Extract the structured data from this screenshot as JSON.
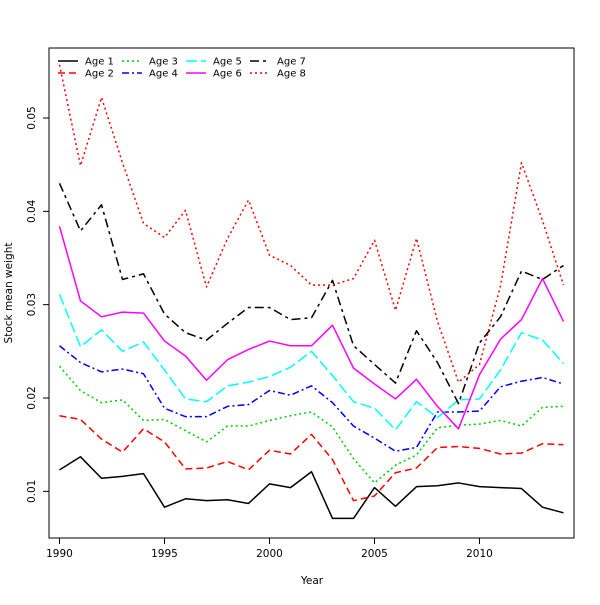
{
  "chart_data": {
    "type": "line",
    "title": "",
    "xlabel": "Year",
    "ylabel": "Stock mean weight",
    "xlim": [
      1989.5,
      2014.5
    ],
    "ylim": [
      0.005,
      0.0575
    ],
    "x_ticks": [
      1990,
      1995,
      2000,
      2005,
      2010
    ],
    "x_tick_labels": [
      "1990",
      "1995",
      "2000",
      "2005",
      "2010"
    ],
    "y_ticks": [
      0.01,
      0.02,
      0.03,
      0.04,
      0.05
    ],
    "y_tick_labels": [
      "0.01",
      "0.02",
      "0.03",
      "0.04",
      "0.05"
    ],
    "grid": false,
    "legend_position": "top-left",
    "x": [
      1990,
      1991,
      1992,
      1993,
      1994,
      1995,
      1996,
      1997,
      1998,
      1999,
      2000,
      2001,
      2002,
      2003,
      2004,
      2005,
      2006,
      2007,
      2008,
      2009,
      2010,
      2011,
      2012,
      2013,
      2014
    ],
    "series": [
      {
        "name": "Age 1",
        "color": "#000000",
        "dash": "solid",
        "values": [
          0.0123,
          0.0137,
          0.0114,
          0.0116,
          0.0119,
          0.0083,
          0.0092,
          0.009,
          0.0091,
          0.0087,
          0.0108,
          0.0104,
          0.0121,
          0.0071,
          0.0071,
          0.0104,
          0.0084,
          0.0105,
          0.0106,
          0.0109,
          0.0105,
          0.0104,
          0.0103,
          0.0083,
          0.0077
        ]
      },
      {
        "name": "Age 2",
        "color": "#ff0000",
        "dash": "dashed",
        "values": [
          0.0181,
          0.0177,
          0.0156,
          0.0142,
          0.0167,
          0.0153,
          0.0124,
          0.0125,
          0.0132,
          0.0123,
          0.0144,
          0.014,
          0.0161,
          0.0134,
          0.009,
          0.0095,
          0.012,
          0.0125,
          0.0147,
          0.0148,
          0.0146,
          0.014,
          0.0141,
          0.0151,
          0.015
        ]
      },
      {
        "name": "Age 3",
        "color": "#00cc00",
        "dash": "dotted",
        "values": [
          0.0234,
          0.0208,
          0.0195,
          0.0198,
          0.0176,
          0.0177,
          0.0165,
          0.0153,
          0.017,
          0.017,
          0.0176,
          0.0181,
          0.0185,
          0.0169,
          0.0135,
          0.0109,
          0.0128,
          0.0139,
          0.0168,
          0.0171,
          0.0172,
          0.0176,
          0.017,
          0.019,
          0.0191
        ]
      },
      {
        "name": "Age 4",
        "color": "#0000ff",
        "dash": "dashdot",
        "values": [
          0.0256,
          0.0238,
          0.0228,
          0.0231,
          0.0226,
          0.0189,
          0.018,
          0.018,
          0.0191,
          0.0193,
          0.0208,
          0.0203,
          0.0213,
          0.0195,
          0.017,
          0.0157,
          0.0143,
          0.0147,
          0.0185,
          0.0185,
          0.0186,
          0.0212,
          0.0218,
          0.0222,
          0.0215
        ]
      },
      {
        "name": "Age 5",
        "color": "#00ffff",
        "dash": "longdash",
        "values": [
          0.0311,
          0.0255,
          0.0273,
          0.025,
          0.026,
          0.023,
          0.0199,
          0.0196,
          0.0213,
          0.0217,
          0.0223,
          0.0233,
          0.025,
          0.0224,
          0.0196,
          0.0189,
          0.0166,
          0.0196,
          0.0179,
          0.0198,
          0.0199,
          0.023,
          0.027,
          0.0262,
          0.0237
        ]
      },
      {
        "name": "Age 6",
        "color": "#ff00ff",
        "dash": "solid",
        "values": [
          0.0384,
          0.0304,
          0.0287,
          0.0292,
          0.0291,
          0.0261,
          0.0245,
          0.0219,
          0.0241,
          0.0252,
          0.0261,
          0.0256,
          0.0256,
          0.0278,
          0.0232,
          0.0215,
          0.0199,
          0.022,
          0.0191,
          0.0167,
          0.0225,
          0.0263,
          0.0284,
          0.0328,
          0.0282
        ]
      },
      {
        "name": "Age 7",
        "color": "#000000",
        "dash": "twodash",
        "values": [
          0.043,
          0.0379,
          0.0407,
          0.0327,
          0.0333,
          0.029,
          0.027,
          0.0262,
          0.028,
          0.0297,
          0.0297,
          0.0284,
          0.0286,
          0.0326,
          0.0256,
          0.0236,
          0.0216,
          0.0272,
          0.0238,
          0.0194,
          0.0259,
          0.0287,
          0.0336,
          0.0327,
          0.0342
        ]
      },
      {
        "name": "Age 8",
        "color": "#ff0000",
        "dash": "dotted",
        "values": [
          0.0557,
          0.0449,
          0.0522,
          0.0452,
          0.0387,
          0.0372,
          0.0401,
          0.0319,
          0.0371,
          0.0412,
          0.0353,
          0.0342,
          0.0321,
          0.0321,
          0.0328,
          0.0369,
          0.0294,
          0.0371,
          0.0282,
          0.0217,
          0.0236,
          0.032,
          0.0452,
          0.039,
          0.0321
        ]
      }
    ]
  }
}
